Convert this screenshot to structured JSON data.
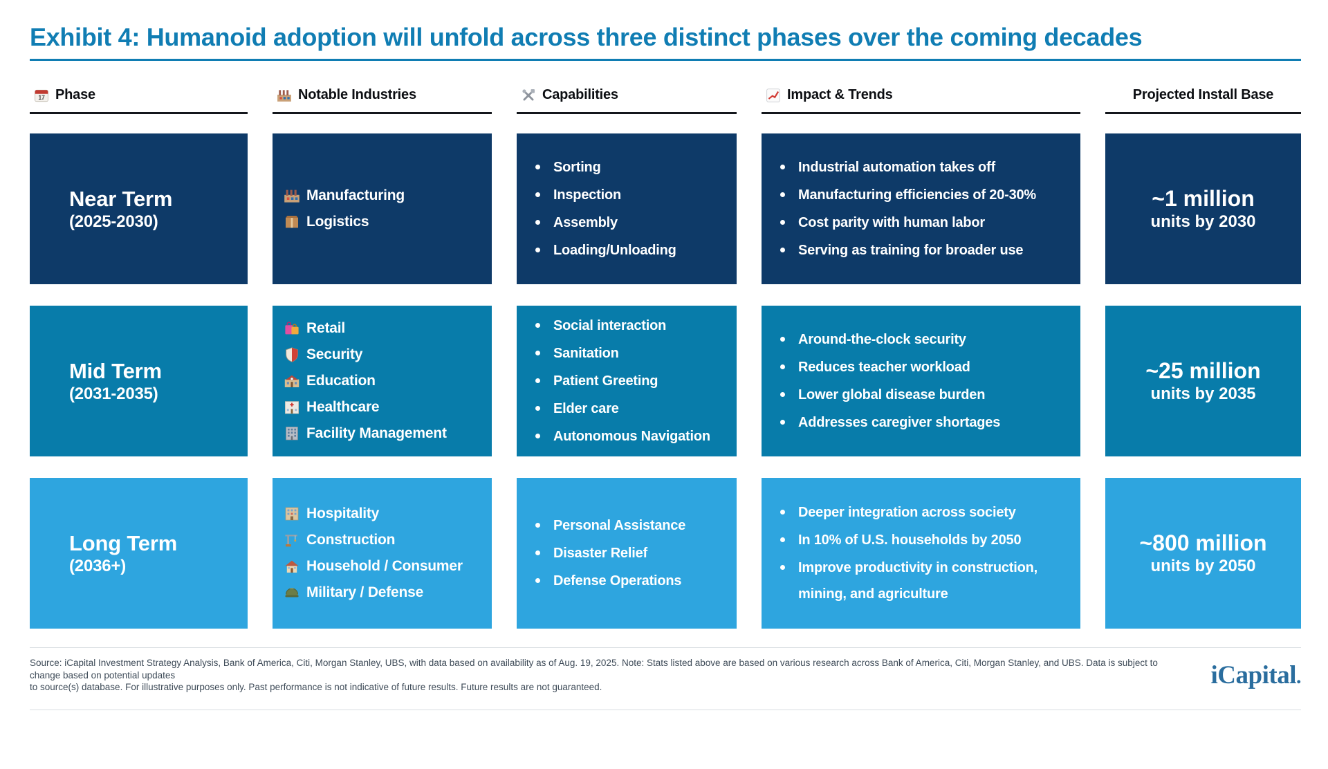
{
  "header": {
    "title": "Exhibit 4: Humanoid adoption will unfold across three distinct phases over the coming decades"
  },
  "columns": [
    {
      "icon": "calendar-icon",
      "label": "Phase"
    },
    {
      "icon": "factory-icon",
      "label": "Notable Industries"
    },
    {
      "icon": "tools-icon",
      "label": "Capabilities"
    },
    {
      "icon": "chart-icon",
      "label": "Impact & Trends"
    },
    {
      "icon": "",
      "label": "Projected Install Base"
    }
  ],
  "phases": [
    {
      "name": "Near Term",
      "years": "(2025-2030)",
      "bg": "#0e3a68",
      "industries": [
        {
          "icon": "factory-icon",
          "label": "Manufacturing"
        },
        {
          "icon": "package-icon",
          "label": "Logistics"
        }
      ],
      "capabilities": [
        "Sorting",
        "Inspection",
        "Assembly",
        "Loading/Unloading"
      ],
      "impact": [
        [
          "Industrial automation takes off"
        ],
        [
          "Manufacturing efficiencies of 20-30%"
        ],
        [
          "Cost parity with human labor"
        ],
        [
          "Serving as training for broader use"
        ]
      ],
      "install": {
        "value": "~1 million",
        "caption": "units by 2030"
      }
    },
    {
      "name": "Mid Term",
      "years": "(2031-2035)",
      "bg": "#087caa",
      "industries": [
        {
          "icon": "bags-icon",
          "label": "Retail"
        },
        {
          "icon": "shield-icon",
          "label": "Security"
        },
        {
          "icon": "school-icon",
          "label": "Education"
        },
        {
          "icon": "hospital-icon",
          "label": "Healthcare"
        },
        {
          "icon": "office-icon",
          "label": "Facility Management"
        }
      ],
      "capabilities": [
        "Social interaction",
        "Sanitation",
        "Patient Greeting",
        "Elder care",
        "Autonomous Navigation"
      ],
      "impact": [
        [
          "Around-the-clock security"
        ],
        [
          "Reduces teacher workload"
        ],
        [
          "Lower global disease burden"
        ],
        [
          "Addresses caregiver shortages"
        ]
      ],
      "install": {
        "value": "~25 million",
        "caption": "units by 2035"
      }
    },
    {
      "name": "Long Term",
      "years": "(2036+)",
      "bg": "#2ea5df",
      "industries": [
        {
          "icon": "hotel-icon",
          "label": "Hospitality"
        },
        {
          "icon": "crane-icon",
          "label": "Construction"
        },
        {
          "icon": "house-icon",
          "label": "Household / Consumer"
        },
        {
          "icon": "helmet-icon",
          "label": "Military / Defense"
        }
      ],
      "capabilities": [
        "Personal Assistance",
        "Disaster Relief",
        "Defense Operations"
      ],
      "impact": [
        [
          "Deeper integration across society"
        ],
        [
          "In 10% of U.S. households by 2050"
        ],
        [
          "Improve productivity in construction,",
          "mining, and agriculture"
        ]
      ],
      "install": {
        "value": "~800 million",
        "caption": "units by 2050"
      }
    }
  ],
  "footer": {
    "line1": "Source: iCapital Investment Strategy Analysis, Bank of America, Citi, Morgan Stanley, UBS, with data based on availability as of Aug. 19, 2025. Note: Stats listed above are based on various research across Bank of America, Citi, Morgan Stanley, and UBS. Data is subject to change based on potential updates",
    "line2": "to source(s) database. For illustrative purposes only. Past performance is not indicative of future results. Future results are not guaranteed.",
    "logo": "iCapital",
    "logo_mark": "."
  },
  "colors": {
    "title_blue": "#107db3",
    "near_navy": "#0e3a68",
    "mid_blue": "#087caa",
    "long_blue": "#2ea5df",
    "header_ink": "#0c0e12",
    "footer_ink": "#3d4a57",
    "logo_blue": "#2a6d9e",
    "divider": "#d9dde1"
  }
}
